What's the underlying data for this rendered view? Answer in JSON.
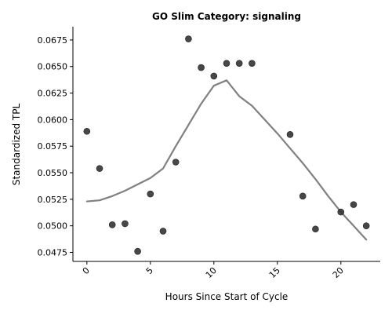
{
  "chart_data": {
    "type": "scatter",
    "title": "GO Slim Category: signaling",
    "xlabel": "Hours Since Start of Cycle",
    "ylabel": "Standardized TPL",
    "xlim": [
      -1.1,
      23.1
    ],
    "ylim": [
      0.04665,
      0.06875
    ],
    "x_ticks": [
      0,
      5,
      10,
      15,
      20
    ],
    "y_ticks": [
      0.0475,
      0.05,
      0.0525,
      0.055,
      0.0575,
      0.06,
      0.0625,
      0.065,
      0.0675
    ],
    "y_tick_labels": [
      "0.0475",
      "0.0500",
      "0.0525",
      "0.0550",
      "0.0575",
      "0.0600",
      "0.0625",
      "0.0650",
      "0.0675"
    ],
    "grid": false,
    "point_color": "#333333",
    "line_color": "#808080",
    "points": {
      "x": [
        0,
        1,
        2,
        3,
        4,
        5,
        6,
        7,
        8,
        9,
        10,
        11,
        12,
        13,
        16,
        17,
        18,
        20,
        21,
        22
      ],
      "y": [
        0.0589,
        0.0554,
        0.0501,
        0.0502,
        0.0476,
        0.053,
        0.0495,
        0.056,
        0.0676,
        0.0649,
        0.0641,
        0.0653,
        0.0653,
        0.0653,
        0.0586,
        0.0528,
        0.0497,
        0.0513,
        0.052,
        0.05
      ]
    },
    "trend_line": {
      "x": [
        0,
        1,
        2,
        3,
        4,
        5,
        6,
        7,
        8,
        9,
        10,
        11,
        12,
        13,
        14,
        15,
        16,
        17,
        18,
        19,
        20,
        21,
        22
      ],
      "y": [
        0.0523,
        0.0524,
        0.0528,
        0.0533,
        0.0539,
        0.0545,
        0.0554,
        0.0575,
        0.0595,
        0.0615,
        0.0632,
        0.0637,
        0.0622,
        0.0613,
        0.06,
        0.0587,
        0.0573,
        0.0559,
        0.0544,
        0.0528,
        0.0513,
        0.05,
        0.0487
      ]
    }
  }
}
